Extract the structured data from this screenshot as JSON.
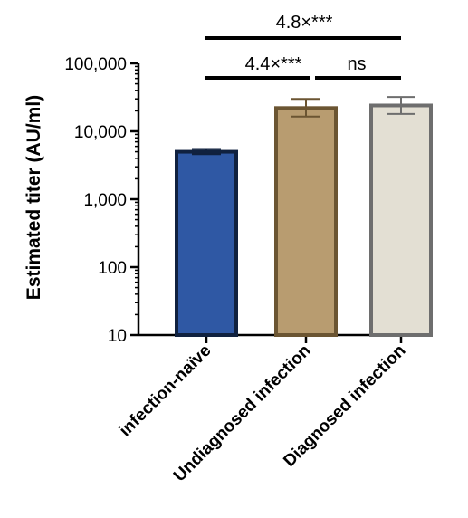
{
  "chart_data": {
    "type": "bar",
    "ylabel": "Estimated titer (AU/ml)",
    "yscale": "log",
    "ylim": [
      10,
      100000
    ],
    "yticks": [
      {
        "value": 10,
        "label": "10"
      },
      {
        "value": 100,
        "label": "100"
      },
      {
        "value": 1000,
        "label": "1,000"
      },
      {
        "value": 10000,
        "label": "10,000"
      },
      {
        "value": 100000,
        "label": "100,000"
      }
    ],
    "categories": [
      "infection-naïve",
      "Undiagnosed infection",
      "Diagnosed infection"
    ],
    "values": [
      5000,
      22000,
      24000
    ],
    "error_low": [
      4600,
      16500,
      18000
    ],
    "error_high": [
      5500,
      30000,
      32000
    ],
    "bar_fill": [
      "#2f58a4",
      "#b89c70",
      "#e3dfd3"
    ],
    "bar_edge": [
      "#10213f",
      "#6b5532",
      "#6e6e6e"
    ],
    "comparisons": [
      {
        "from": 0,
        "to": 1,
        "label": "4.4×***"
      },
      {
        "from": 1,
        "to": 2,
        "label": "ns"
      },
      {
        "from": 0,
        "to": 2,
        "label": "4.8×***"
      }
    ],
    "grid": false,
    "legend": "none"
  }
}
